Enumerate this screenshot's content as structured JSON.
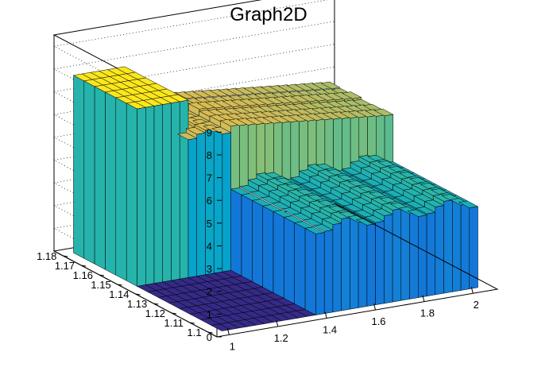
{
  "chart_data": {
    "type": "surface3d",
    "title": "Graph2D",
    "xlabel": "",
    "ylabel": "",
    "zlabel": "",
    "x_range": [
      0.95,
      2.1
    ],
    "y_range": [
      1.095,
      1.185
    ],
    "z_range": [
      0,
      9.5
    ],
    "x_ticks": [
      "1",
      "1.2",
      "1.4",
      "1.6",
      "1.8",
      "2"
    ],
    "y_ticks": [
      "1.1",
      "1.11",
      "1.12",
      "1.13",
      "1.14",
      "1.15",
      "1.16",
      "1.17",
      "1.18"
    ],
    "z_ticks": [
      "0",
      "1",
      "2",
      "3",
      "4",
      "5",
      "6",
      "7",
      "8",
      "9"
    ],
    "grid": true,
    "palette": [
      "#352a87",
      "#0f5cdd",
      "#1481d6",
      "#06a4ca",
      "#2eb7a4",
      "#87bf77",
      "#d1bb59",
      "#fec832",
      "#f9fb0e"
    ],
    "surface_regions": [
      {
        "region": "x < 1.2, y >= 1.145",
        "z": 7.8
      },
      {
        "region": "x < 1.4, y < 1.145",
        "z": 0
      },
      {
        "region": "1.2 <= x < 1.4, y >= 1.145",
        "z": 6.2
      },
      {
        "region": "x >= 1.4, y < 1.145",
        "z": 3.8
      },
      {
        "region": "x >= 1.4, y >= 1.145",
        "z": 6.4
      }
    ]
  }
}
